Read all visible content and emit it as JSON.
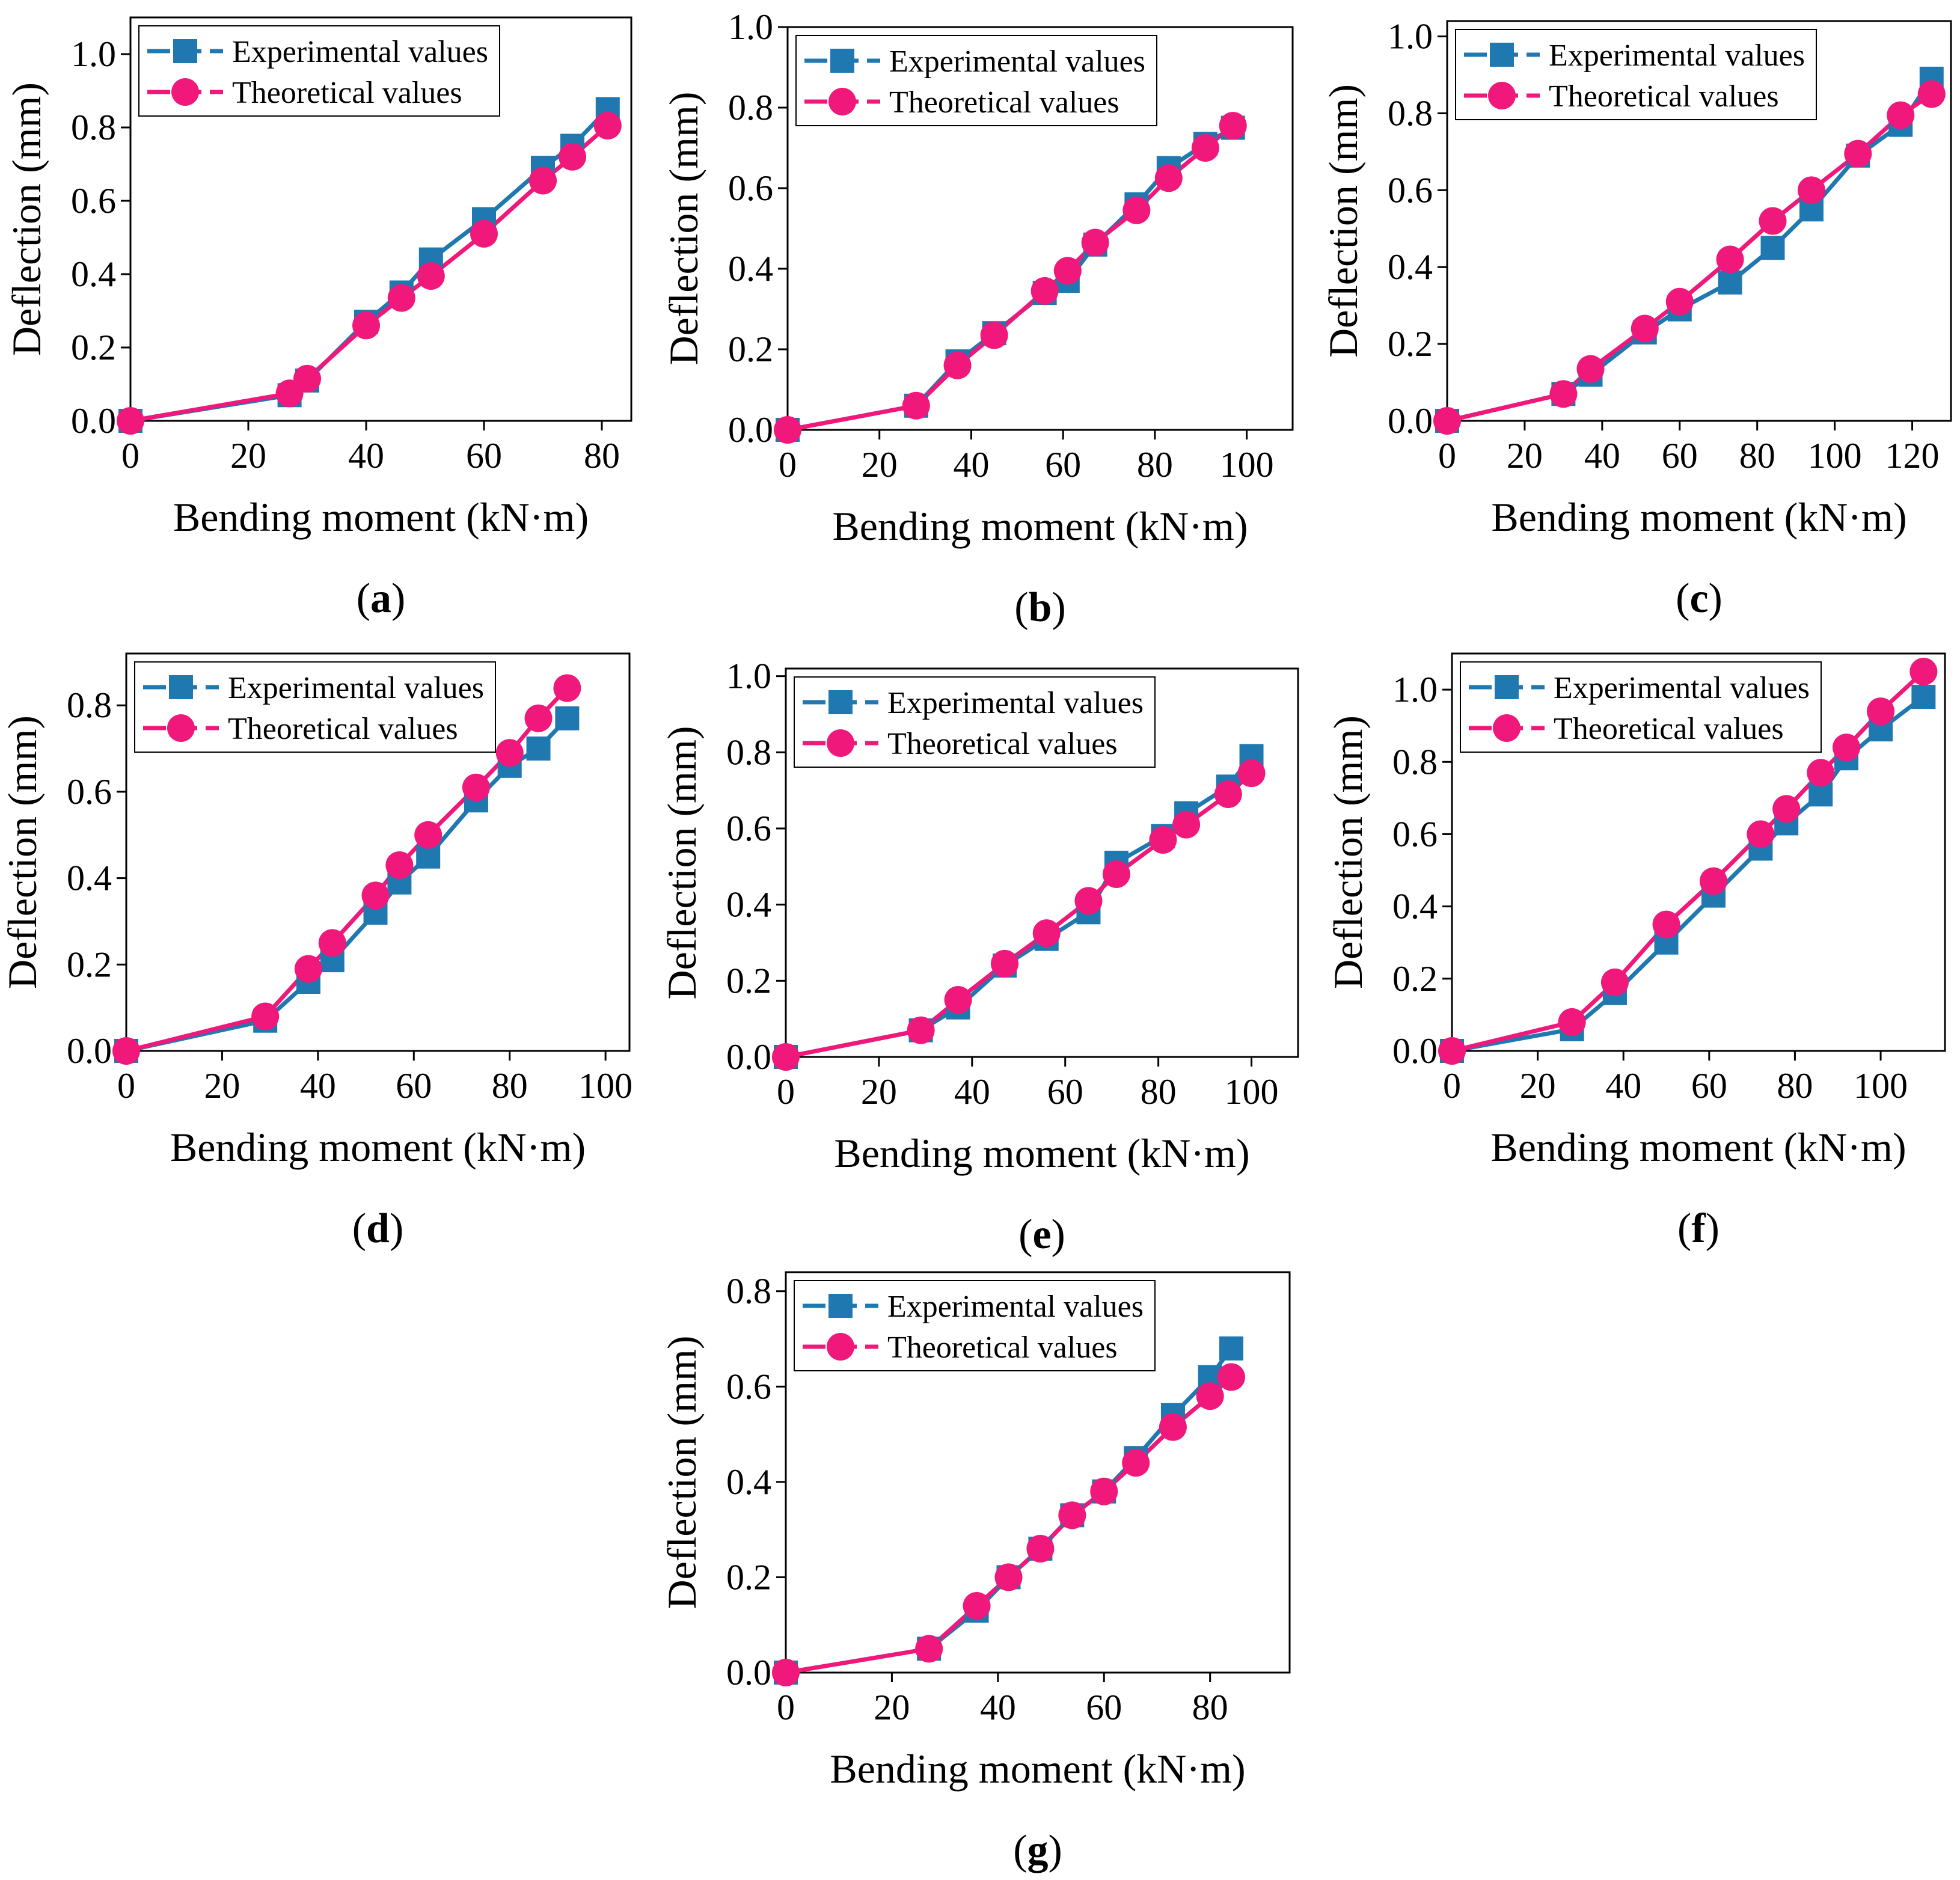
{
  "figure": {
    "colors": {
      "experimental": "#1f78b0",
      "theoretical": "#f0187a",
      "axis": "#000000",
      "background": "#ffffff"
    },
    "legend": {
      "experimental_label": "Experimental values",
      "theoretical_label": "Theoretical values",
      "experimental_marker": "square",
      "theoretical_marker": "circle"
    }
  },
  "chart_data": [
    {
      "panel": "(a)",
      "panel_letter": "a",
      "type": "line",
      "xlabel": "Bending moment (kN·m)",
      "ylabel": "Deflection (mm)",
      "xlim": [
        0,
        85
      ],
      "ylim": [
        0,
        1.1
      ],
      "xticks": [
        0,
        20,
        40,
        60,
        80
      ],
      "yticks": [
        0.0,
        0.2,
        0.4,
        0.6,
        0.8,
        1.0
      ],
      "xtick_labels": [
        "0",
        "20",
        "40",
        "60",
        "80"
      ],
      "ytick_labels": [
        "0.0",
        "0.2",
        "0.4",
        "0.6",
        "0.8",
        "1.0"
      ],
      "series": [
        {
          "name": "Experimental values",
          "marker": "square",
          "x": [
            0,
            27,
            30,
            40,
            46,
            51,
            60,
            70,
            75,
            81
          ],
          "y": [
            0,
            0.07,
            0.11,
            0.27,
            0.35,
            0.44,
            0.55,
            0.69,
            0.75,
            0.85
          ]
        },
        {
          "name": "Theoretical values",
          "marker": "circle",
          "x": [
            0,
            27,
            30,
            40,
            46,
            51,
            60,
            70,
            75,
            81
          ],
          "y": [
            0,
            0.075,
            0.115,
            0.26,
            0.335,
            0.395,
            0.51,
            0.655,
            0.72,
            0.805
          ]
        }
      ],
      "legend_position": "top-left"
    },
    {
      "panel": "(b)",
      "panel_letter": "b",
      "type": "line",
      "xlabel": "Bending moment (kN·m)",
      "ylabel": "Deflection (mm)",
      "xlim": [
        0,
        110
      ],
      "ylim": [
        0,
        1.0
      ],
      "xticks": [
        0,
        20,
        40,
        60,
        80,
        100
      ],
      "yticks": [
        0.0,
        0.2,
        0.4,
        0.6,
        0.8,
        1.0
      ],
      "xtick_labels": [
        "0",
        "20",
        "40",
        "60",
        "80",
        "100"
      ],
      "ytick_labels": [
        "0.0",
        "0.2",
        "0.4",
        "0.6",
        "0.8",
        "1.0"
      ],
      "series": [
        {
          "name": "Experimental values",
          "marker": "square",
          "x": [
            0,
            28,
            37,
            45,
            56,
            61,
            67,
            76,
            83,
            91,
            97
          ],
          "y": [
            0,
            0.06,
            0.17,
            0.24,
            0.34,
            0.37,
            0.46,
            0.56,
            0.65,
            0.71,
            0.75
          ]
        },
        {
          "name": "Theoretical values",
          "marker": "circle",
          "x": [
            0,
            28,
            37,
            45,
            56,
            61,
            67,
            76,
            83,
            91,
            97
          ],
          "y": [
            0,
            0.06,
            0.16,
            0.235,
            0.345,
            0.395,
            0.465,
            0.545,
            0.625,
            0.7,
            0.755
          ]
        }
      ],
      "legend_position": "top-left"
    },
    {
      "panel": "(c)",
      "panel_letter": "c",
      "type": "line",
      "xlabel": "Bending moment (kN·m)",
      "ylabel": "Deflection (mm)",
      "xlim": [
        0,
        130
      ],
      "ylim": [
        0,
        1.04
      ],
      "xticks": [
        0,
        20,
        40,
        60,
        80,
        100,
        120
      ],
      "yticks": [
        0.0,
        0.2,
        0.4,
        0.6,
        0.8,
        1.0
      ],
      "xtick_labels": [
        "0",
        "20",
        "40",
        "60",
        "80",
        "100",
        "120"
      ],
      "ytick_labels": [
        "0.0",
        "0.2",
        "0.4",
        "0.6",
        "0.8",
        "1.0"
      ],
      "series": [
        {
          "name": "Experimental values",
          "marker": "square",
          "x": [
            0,
            30,
            37,
            51,
            60,
            73,
            84,
            94,
            106,
            117,
            125
          ],
          "y": [
            0,
            0.07,
            0.12,
            0.23,
            0.29,
            0.36,
            0.45,
            0.55,
            0.69,
            0.77,
            0.89
          ]
        },
        {
          "name": "Theoretical values",
          "marker": "circle",
          "x": [
            0,
            30,
            37,
            51,
            60,
            73,
            84,
            94,
            106,
            117,
            125
          ],
          "y": [
            0,
            0.07,
            0.135,
            0.24,
            0.31,
            0.42,
            0.52,
            0.6,
            0.695,
            0.795,
            0.85
          ]
        }
      ],
      "legend_position": "top-left"
    },
    {
      "panel": "(d)",
      "panel_letter": "d",
      "type": "line",
      "xlabel": "Bending moment (kN·m)",
      "ylabel": "Deflection (mm)",
      "xlim": [
        0,
        105
      ],
      "ylim": [
        0,
        0.92
      ],
      "xticks": [
        0,
        20,
        40,
        60,
        80,
        100
      ],
      "yticks": [
        0.0,
        0.2,
        0.4,
        0.6,
        0.8
      ],
      "xtick_labels": [
        "0",
        "20",
        "40",
        "60",
        "80",
        "100"
      ],
      "ytick_labels": [
        "0.0",
        "0.2",
        "0.4",
        "0.6",
        "0.8"
      ],
      "series": [
        {
          "name": "Experimental values",
          "marker": "square",
          "x": [
            0,
            29,
            38,
            43,
            52,
            57,
            63,
            73,
            80,
            86,
            92
          ],
          "y": [
            0,
            0.07,
            0.16,
            0.21,
            0.32,
            0.39,
            0.45,
            0.58,
            0.66,
            0.7,
            0.77
          ]
        },
        {
          "name": "Theoretical values",
          "marker": "circle",
          "x": [
            0,
            29,
            38,
            43,
            52,
            57,
            63,
            73,
            80,
            86,
            92
          ],
          "y": [
            0,
            0.08,
            0.19,
            0.25,
            0.36,
            0.43,
            0.5,
            0.61,
            0.69,
            0.77,
            0.84
          ]
        }
      ],
      "legend_position": "top-left"
    },
    {
      "panel": "(e)",
      "panel_letter": "e",
      "type": "line",
      "xlabel": "Bending moment (kN·m)",
      "ylabel": "Deflection (mm)",
      "xlim": [
        0,
        110
      ],
      "ylim": [
        0,
        1.02
      ],
      "xticks": [
        0,
        20,
        40,
        60,
        80,
        100
      ],
      "yticks": [
        0.0,
        0.2,
        0.4,
        0.6,
        0.8,
        1.0
      ],
      "xtick_labels": [
        "0",
        "20",
        "40",
        "60",
        "80",
        "100"
      ],
      "ytick_labels": [
        "0.0",
        "0.2",
        "0.4",
        "0.6",
        "0.8",
        "1.0"
      ],
      "series": [
        {
          "name": "Experimental values",
          "marker": "square",
          "x": [
            0,
            29,
            37,
            47,
            56,
            65,
            71,
            81,
            86,
            95,
            100
          ],
          "y": [
            0,
            0.07,
            0.13,
            0.24,
            0.31,
            0.38,
            0.51,
            0.58,
            0.64,
            0.71,
            0.79
          ]
        },
        {
          "name": "Theoretical values",
          "marker": "circle",
          "x": [
            0,
            29,
            37,
            47,
            56,
            65,
            71,
            81,
            86,
            95,
            100
          ],
          "y": [
            0,
            0.07,
            0.15,
            0.245,
            0.325,
            0.41,
            0.48,
            0.57,
            0.61,
            0.69,
            0.745
          ]
        }
      ],
      "legend_position": "top-left"
    },
    {
      "panel": "(f)",
      "panel_letter": "f",
      "type": "line",
      "xlabel": "Bending moment (kN·m)",
      "ylabel": "Deflection (mm)",
      "xlim": [
        0,
        115
      ],
      "ylim": [
        0,
        1.1
      ],
      "xticks": [
        0,
        20,
        40,
        60,
        80,
        100
      ],
      "yticks": [
        0.0,
        0.2,
        0.4,
        0.6,
        0.8,
        1.0
      ],
      "xtick_labels": [
        "0",
        "20",
        "40",
        "60",
        "80",
        "100"
      ],
      "ytick_labels": [
        "0.0",
        "0.2",
        "0.4",
        "0.6",
        "0.8",
        "1.0"
      ],
      "series": [
        {
          "name": "Experimental values",
          "marker": "square",
          "x": [
            0,
            28,
            38,
            50,
            61,
            72,
            78,
            86,
            92,
            100,
            110
          ],
          "y": [
            0,
            0.06,
            0.16,
            0.3,
            0.43,
            0.56,
            0.63,
            0.71,
            0.81,
            0.89,
            0.98
          ]
        },
        {
          "name": "Theoretical values",
          "marker": "circle",
          "x": [
            0,
            28,
            38,
            50,
            61,
            72,
            78,
            86,
            92,
            100,
            110
          ],
          "y": [
            0,
            0.08,
            0.19,
            0.35,
            0.47,
            0.6,
            0.67,
            0.77,
            0.84,
            0.94,
            1.05
          ]
        }
      ],
      "legend_position": "top-left"
    },
    {
      "panel": "(g)",
      "panel_letter": "g",
      "type": "line",
      "xlabel": "Bending moment (kN·m)",
      "ylabel": "Deflection (mm)",
      "xlim": [
        0,
        95
      ],
      "ylim": [
        0,
        0.84
      ],
      "xticks": [
        0,
        20,
        40,
        60,
        80
      ],
      "yticks": [
        0.0,
        0.2,
        0.4,
        0.6,
        0.8
      ],
      "xtick_labels": [
        "0",
        "20",
        "40",
        "60",
        "80"
      ],
      "ytick_labels": [
        "0.0",
        "0.2",
        "0.4",
        "0.6",
        "0.8"
      ],
      "series": [
        {
          "name": "Experimental values",
          "marker": "square",
          "x": [
            0,
            27,
            36,
            42,
            48,
            54,
            60,
            66,
            73,
            80,
            84
          ],
          "y": [
            0,
            0.05,
            0.13,
            0.2,
            0.26,
            0.33,
            0.38,
            0.45,
            0.54,
            0.62,
            0.68
          ]
        },
        {
          "name": "Theoretical values",
          "marker": "circle",
          "x": [
            0,
            27,
            36,
            42,
            48,
            54,
            60,
            66,
            73,
            80,
            84
          ],
          "y": [
            0,
            0.05,
            0.14,
            0.2,
            0.26,
            0.33,
            0.38,
            0.44,
            0.515,
            0.58,
            0.62
          ]
        }
      ],
      "legend_position": "top-left"
    }
  ]
}
